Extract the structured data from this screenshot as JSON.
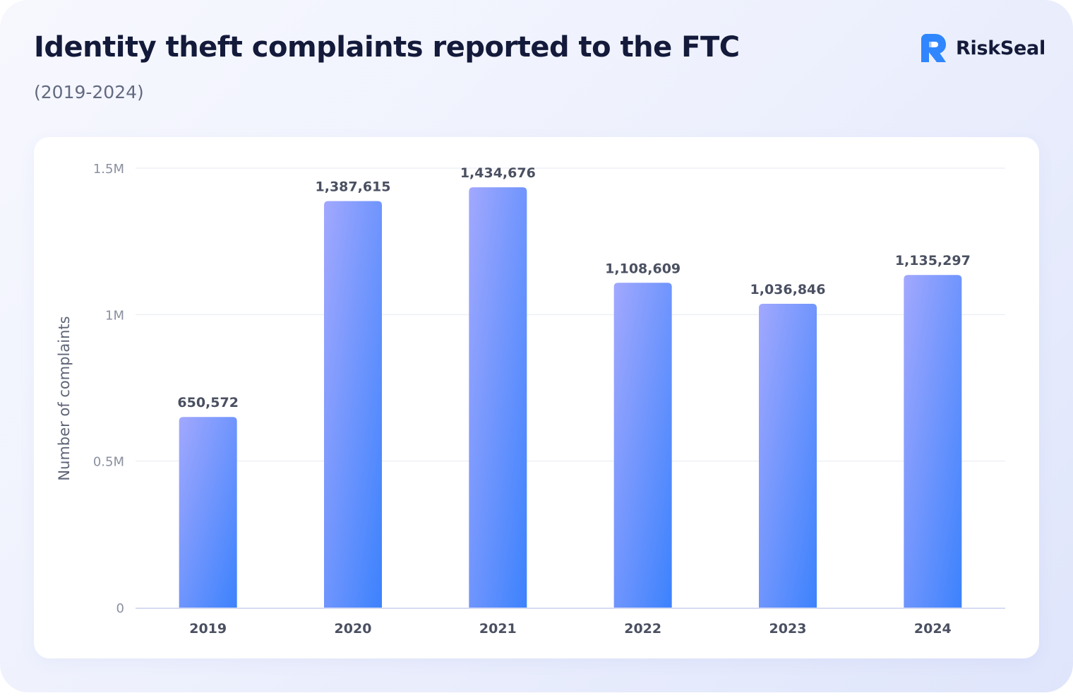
{
  "header": {
    "title": "Identity theft complaints reported to the FTC",
    "subtitle": "(2019-2024)"
  },
  "brand": {
    "name": "RiskSeal",
    "logo_icon": "riskseal-logo-icon",
    "color": "#2f86ff"
  },
  "chart_data": {
    "type": "bar",
    "categories": [
      "2019",
      "2020",
      "2021",
      "2022",
      "2023",
      "2024"
    ],
    "values": [
      650572,
      1387615,
      1434676,
      1108609,
      1036846,
      1135297
    ],
    "data_labels": [
      "650,572",
      "1,387,615",
      "1,434,676",
      "1,108,609",
      "1,036,846",
      "1,135,297"
    ],
    "title": "Identity theft complaints reported to the FTC",
    "subtitle": "(2019-2024)",
    "xlabel": "",
    "ylabel": "Number of complaints",
    "ylim": [
      0,
      1500000
    ],
    "yticks": [
      {
        "value": 0,
        "label": "0"
      },
      {
        "value": 500000,
        "label": "0.5M"
      },
      {
        "value": 1000000,
        "label": "1M"
      },
      {
        "value": 1500000,
        "label": "1.5M"
      }
    ],
    "grid": true,
    "legend": "none",
    "colors": {
      "bar_gradient_start": "#a2a8fd",
      "bar_gradient_end": "#3c82fd",
      "grid": "#eef0f5",
      "baseline": "#d6dbf3"
    }
  }
}
